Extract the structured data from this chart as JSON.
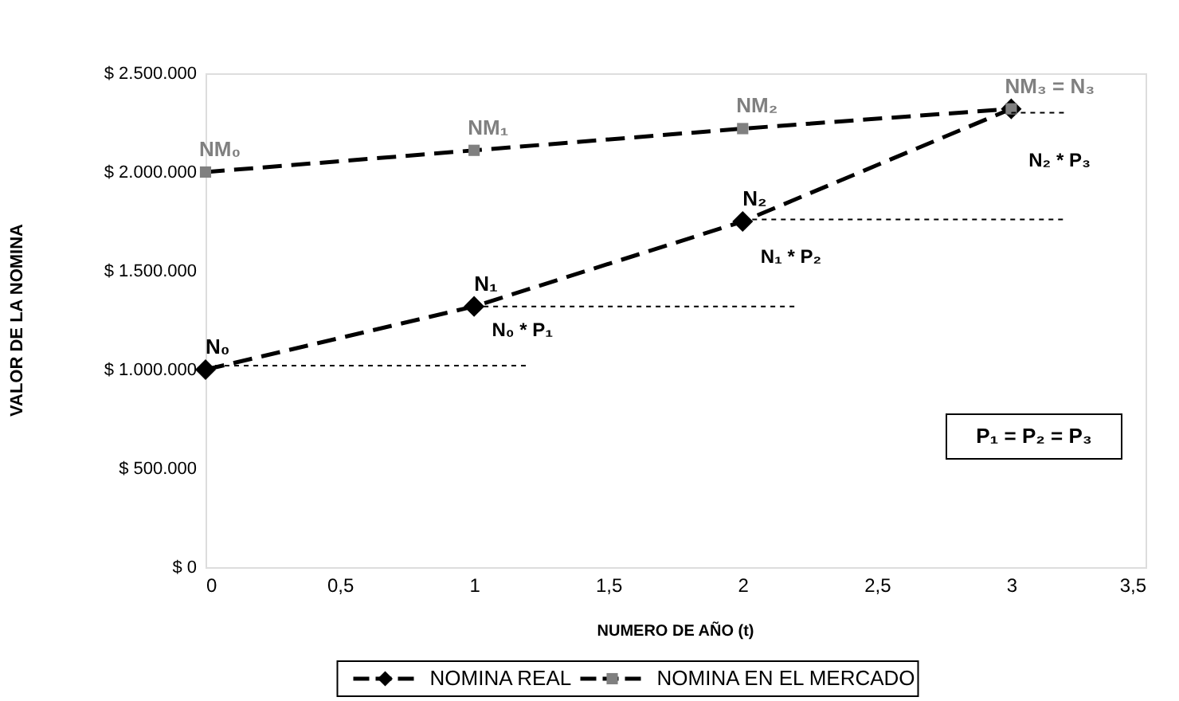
{
  "chart_data": {
    "type": "line",
    "xlabel": "NUMERO DE AÑO (t)",
    "ylabel": "VALOR DE LA NOMINA",
    "x": [
      0,
      1,
      2,
      3
    ],
    "series": [
      {
        "name": "NOMINA REAL",
        "color": "#000000",
        "marker": "diamond",
        "line_style": "dashed",
        "values": [
          1000000,
          1320000,
          1750000,
          2320000
        ],
        "value_labels": [
          "N₀",
          "N₁",
          "N₂",
          null
        ]
      },
      {
        "name": "NOMINA EN EL MERCADO",
        "color": "#000000",
        "colors": [
          "#808080",
          "#808080",
          "#808080",
          "#808080"
        ],
        "marker": "square",
        "line_style": "dashed",
        "values": [
          2000000,
          2110000,
          2220000,
          2320000
        ],
        "value_labels": [
          "NM₀",
          "NM₁",
          "NM₂",
          "NM₃ = N₃"
        ]
      },
      {
        "type": "line",
        "color": "#000000",
        "marker": "none",
        "line_style": "dotted",
        "x": [
          0,
          1.2
        ],
        "values": [
          1020000,
          1020000
        ]
      },
      {
        "type": "line",
        "color": "#000000",
        "marker": "none",
        "line_style": "dotted",
        "x": [
          1,
          2.2
        ],
        "values": [
          1320000,
          1320000
        ]
      },
      {
        "type": "line",
        "color": "#000000",
        "marker": "none",
        "line_style": "dotted",
        "x": [
          2,
          3.2
        ],
        "values": [
          1760000,
          1760000
        ]
      },
      {
        "type": "line",
        "color": "#000000",
        "marker": "none",
        "line_style": "dotted",
        "x": [
          3,
          3.2
        ],
        "values": [
          2300000,
          2300000
        ]
      }
    ],
    "annotations": [
      "N₀ * P₁",
      "N₁ * P₂",
      "N₂ * P₃",
      "P₁ = P₂ = P₃"
    ],
    "xlim": [
      0,
      3.5
    ],
    "xticks": [
      0,
      {
        "value": 0.5,
        "label": "0,5"
      },
      1,
      {
        "value": 1.5,
        "label": "1,5"
      },
      2,
      {
        "value": 2.5,
        "label": "2,5"
      },
      3,
      {
        "value": 3.5,
        "label": "3,5"
      }
    ],
    "ylim": [
      0,
      2500000
    ],
    "yticks": [
      {
        "value": 0,
        "label": "$ 0"
      },
      {
        "value": 500000,
        "label": "$ 500.000"
      },
      {
        "value": 1000000,
        "label": "$ 1.000.000"
      },
      {
        "value": 1500000,
        "label": "$ 1.500.000"
      },
      {
        "value": 2000000,
        "label": "$ 2.000.000"
      },
      {
        "value": 2500000,
        "label": "$ 2.500.000"
      }
    ],
    "grid": false,
    "legend": "bottom"
  }
}
